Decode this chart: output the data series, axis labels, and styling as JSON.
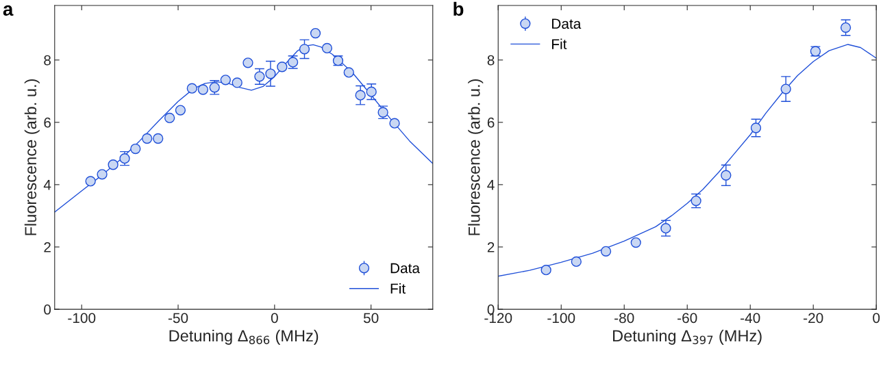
{
  "chart_data": [
    {
      "type": "scatter",
      "xlabel": "Detuning Δ$_{866}$ (MHz)",
      "ylabel": "Fluorescence (arb. u.)",
      "annotations": [
        "a"
      ],
      "xlim": [
        -114,
        82
      ],
      "ylim": [
        0,
        9.75
      ],
      "xticks": [
        -100,
        -50,
        0,
        50
      ],
      "yticks": [
        0,
        2,
        4,
        6,
        8
      ],
      "legend": "bottom right",
      "grid": false,
      "series": [
        {
          "name": "Data",
          "marker": "circle",
          "color": "#1f4fd8",
          "x": [
            -95.4,
            -89.4,
            -83.7,
            -77.7,
            -72.1,
            -66.1,
            -60.4,
            -54.4,
            -48.8,
            -42.8,
            -37.1,
            -31.1,
            -25.4,
            -19.4,
            -13.8,
            -7.8,
            -2.1,
            3.9,
            9.5,
            15.5,
            21.2,
            27.2,
            32.9,
            38.5,
            44.5,
            50.2,
            56.2,
            62.2
          ],
          "values": [
            4.11,
            4.33,
            4.64,
            4.84,
            5.15,
            5.48,
            5.48,
            6.14,
            6.39,
            7.09,
            7.05,
            7.12,
            7.36,
            7.27,
            7.91,
            7.47,
            7.56,
            7.78,
            7.93,
            8.35,
            8.86,
            8.38,
            7.98,
            7.6,
            6.87,
            6.98,
            6.32,
            5.97
          ],
          "errors": [
            null,
            null,
            null,
            0.22,
            null,
            null,
            null,
            null,
            null,
            null,
            null,
            0.22,
            null,
            null,
            null,
            0.25,
            0.4,
            null,
            0.2,
            0.3,
            null,
            null,
            0.15,
            null,
            0.3,
            0.25,
            0.2,
            null
          ]
        },
        {
          "name": "Fit",
          "type": "line",
          "marker": "none",
          "color": "#1f4fd8",
          "x": [
            -114,
            -100,
            -90,
            -80,
            -70,
            -60,
            -50,
            -42,
            -36,
            -30,
            -24,
            -18,
            -12,
            -6,
            0,
            6,
            12,
            16,
            20,
            24,
            30,
            40,
            50,
            60,
            70,
            82
          ],
          "values": [
            3.12,
            3.8,
            4.28,
            4.8,
            5.4,
            6.05,
            6.67,
            7.08,
            7.25,
            7.3,
            7.25,
            7.12,
            7.03,
            7.15,
            7.47,
            7.9,
            8.3,
            8.45,
            8.49,
            8.42,
            8.18,
            7.62,
            6.88,
            6.12,
            5.4,
            4.68
          ]
        }
      ]
    },
    {
      "type": "scatter",
      "xlabel": "Detuning Δ$_{397}$ (MHz)",
      "ylabel": "Fluorescence (arb. u.)",
      "annotations": [
        "b"
      ],
      "xlim": [
        -120,
        0
      ],
      "ylim": [
        0,
        9.75
      ],
      "xticks": [
        -120,
        -100,
        -80,
        -60,
        -40,
        -20,
        0
      ],
      "yticks": [
        0,
        2,
        4,
        6,
        8
      ],
      "legend": "top left",
      "grid": false,
      "series": [
        {
          "name": "Data",
          "marker": "circle",
          "color": "#1f4fd8",
          "x": [
            -104.8,
            -95.2,
            -85.8,
            -76.3,
            -66.8,
            -57.2,
            -47.7,
            -38.2,
            -28.7,
            -19.3,
            -9.7
          ],
          "values": [
            1.26,
            1.53,
            1.86,
            2.14,
            2.6,
            3.48,
            4.3,
            5.82,
            7.07,
            8.28,
            9.04
          ],
          "errors": [
            null,
            null,
            null,
            null,
            0.25,
            0.22,
            0.33,
            0.28,
            0.4,
            0.15,
            0.25
          ]
        },
        {
          "name": "Fit",
          "type": "line",
          "marker": "none",
          "color": "#1f4fd8",
          "x": [
            -120,
            -110,
            -100,
            -90,
            -80,
            -70,
            -65,
            -60,
            -55,
            -50,
            -45,
            -40,
            -35,
            -30,
            -25,
            -20,
            -15,
            -9,
            -5,
            0
          ],
          "values": [
            1.06,
            1.25,
            1.51,
            1.8,
            2.19,
            2.65,
            3.0,
            3.4,
            3.85,
            4.4,
            5.0,
            5.6,
            6.3,
            6.93,
            7.5,
            7.95,
            8.3,
            8.5,
            8.4,
            8.06
          ]
        }
      ]
    }
  ]
}
